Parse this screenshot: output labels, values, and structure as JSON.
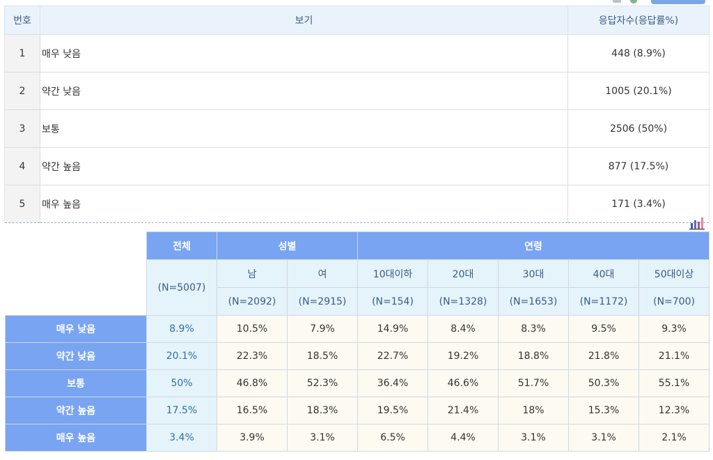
{
  "answers": {
    "headers": {
      "num": "번호",
      "option": "보기",
      "count": "응답자수(응답률%)"
    },
    "rows": [
      {
        "num": "1",
        "option": "매우 낮음",
        "count": "448 (8.9%)"
      },
      {
        "num": "2",
        "option": "약간 낮음",
        "count": "1005 (20.1%)"
      },
      {
        "num": "3",
        "option": "보통",
        "count": "2506 (50%)"
      },
      {
        "num": "4",
        "option": "약간 높음",
        "count": "877 (17.5%)"
      },
      {
        "num": "5",
        "option": "매우 높음",
        "count": "171 (3.4%)"
      }
    ]
  },
  "chart_button_icon": "bar-chart-icon",
  "cross": {
    "total_label": "전체",
    "total_n": "(N=5007)",
    "gender_label": "성별",
    "age_label": "연령",
    "columns": [
      {
        "label": "남",
        "n": "(N=2092)"
      },
      {
        "label": "여",
        "n": "(N=2915)"
      },
      {
        "label": "10대이하",
        "n": "(N=154)"
      },
      {
        "label": "20대",
        "n": "(N=1328)"
      },
      {
        "label": "30대",
        "n": "(N=1653)"
      },
      {
        "label": "40대",
        "n": "(N=1172)"
      },
      {
        "label": "50대이상",
        "n": "(N=700)"
      }
    ],
    "rows": [
      {
        "label": "매우 낮음",
        "total": "8.9%",
        "values": [
          "10.5%",
          "7.9%",
          "14.9%",
          "8.4%",
          "8.3%",
          "9.5%",
          "9.3%"
        ]
      },
      {
        "label": "약간 낮음",
        "total": "20.1%",
        "values": [
          "22.3%",
          "18.5%",
          "22.7%",
          "19.2%",
          "18.8%",
          "21.8%",
          "21.1%"
        ]
      },
      {
        "label": "보통",
        "total": "50%",
        "values": [
          "46.8%",
          "52.3%",
          "36.4%",
          "46.6%",
          "51.7%",
          "50.3%",
          "55.1%"
        ]
      },
      {
        "label": "약간 높음",
        "total": "17.5%",
        "values": [
          "16.5%",
          "18.3%",
          "19.5%",
          "21.4%",
          "18%",
          "15.3%",
          "12.3%"
        ]
      },
      {
        "label": "매우 높음",
        "total": "3.4%",
        "values": [
          "3.9%",
          "3.1%",
          "6.5%",
          "4.4%",
          "3.1%",
          "3.1%",
          "2.1%"
        ]
      }
    ]
  },
  "colors": {
    "header_blue": "#79a4f2",
    "header_light": "#e5f3fb",
    "value_bg": "#fdfaf1",
    "total_text": "#2f6fa8"
  }
}
